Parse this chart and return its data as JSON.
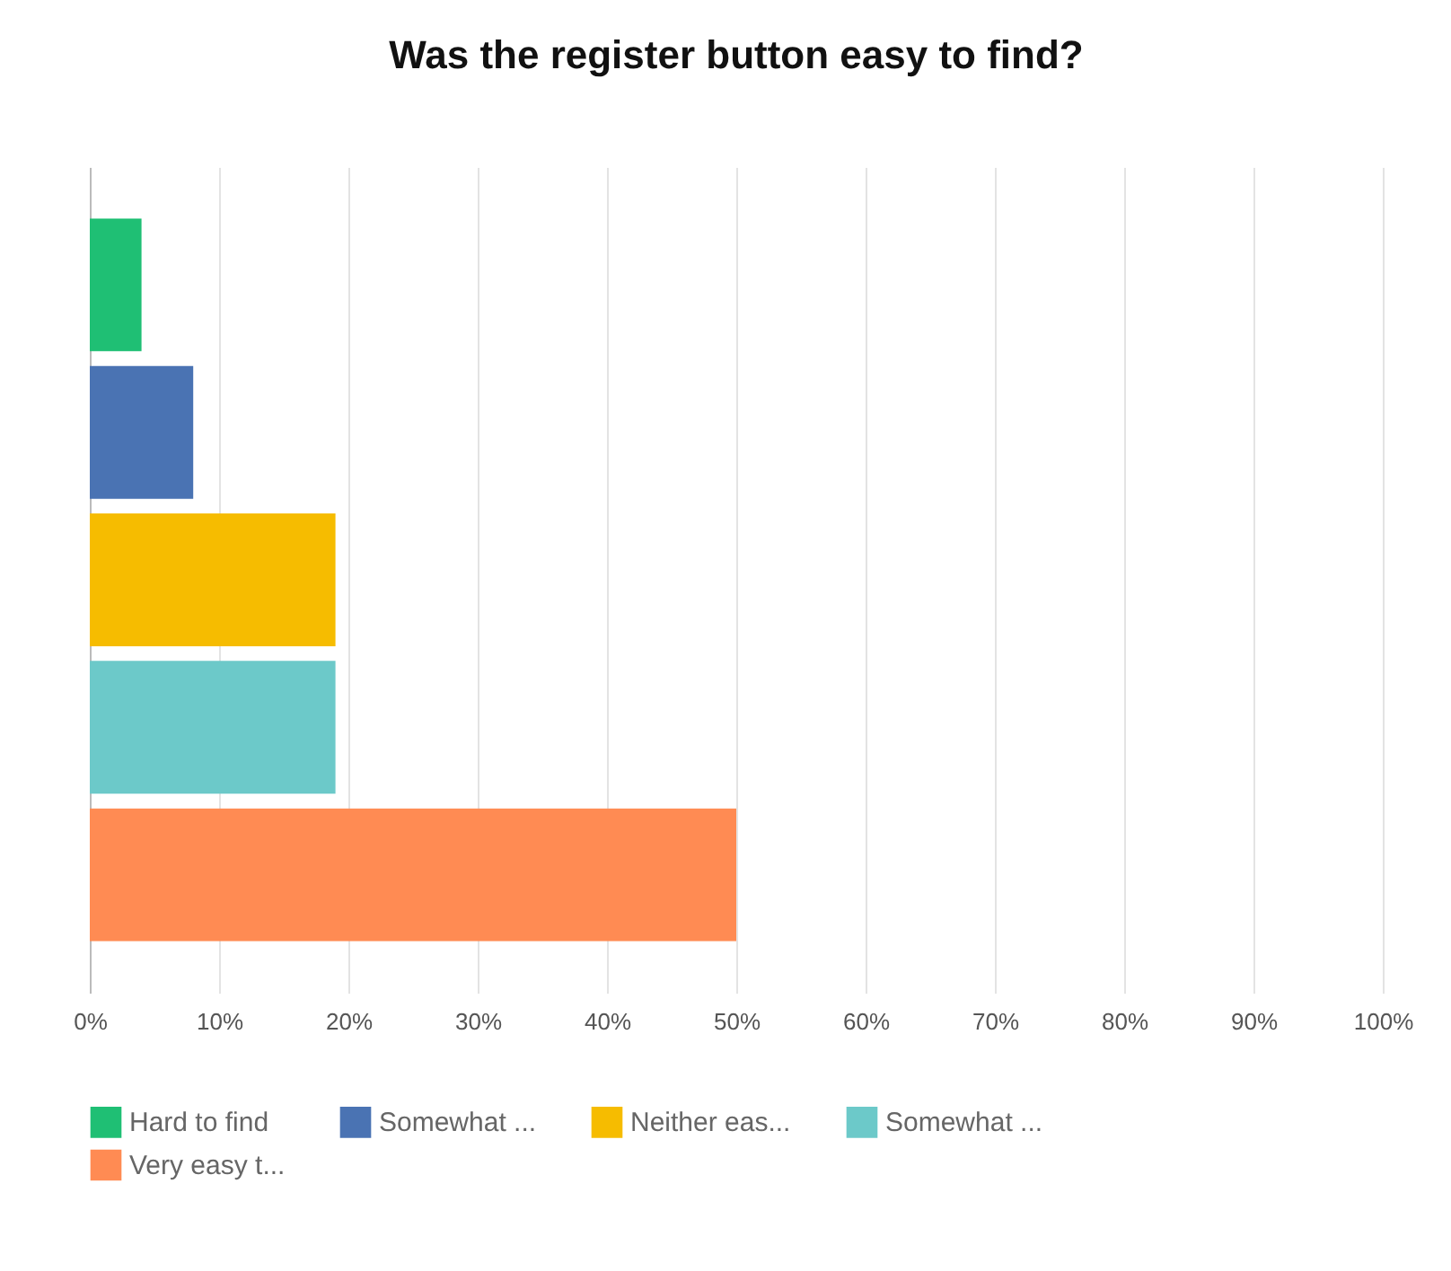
{
  "chart_data": {
    "type": "bar",
    "orientation": "horizontal",
    "title": "Was the register button easy to find?",
    "categories": [
      null,
      null,
      null,
      null,
      null
    ],
    "series": [
      {
        "name": "Hard to find",
        "color": "#1fbf74",
        "values": [
          4,
          null,
          null,
          null,
          null
        ]
      },
      {
        "name": "Somewhat ...",
        "color": "#4a73b3",
        "values": [
          null,
          8,
          null,
          null,
          null
        ]
      },
      {
        "name": "Neither eas...",
        "color": "#f6bc00",
        "values": [
          null,
          null,
          19,
          null,
          null
        ]
      },
      {
        "name": "Somewhat ...",
        "color": "#6cc9c9",
        "values": [
          null,
          null,
          null,
          19,
          null
        ]
      },
      {
        "name": "Very easy t...",
        "color": "#ff8b53",
        "values": [
          null,
          null,
          null,
          null,
          50
        ]
      }
    ],
    "xlim": [
      0,
      100
    ],
    "xticks": [
      {
        "value": 0,
        "label": "0%"
      },
      {
        "value": 10,
        "label": "10%"
      },
      {
        "value": 20,
        "label": "20%"
      },
      {
        "value": 30,
        "label": "30%"
      },
      {
        "value": 40,
        "label": "40%"
      },
      {
        "value": 50,
        "label": "50%"
      },
      {
        "value": 60,
        "label": "60%"
      },
      {
        "value": 70,
        "label": "70%"
      },
      {
        "value": 80,
        "label": "80%"
      },
      {
        "value": 90,
        "label": "90%"
      },
      {
        "value": 100,
        "label": "100%"
      }
    ],
    "grid": "x",
    "legend": "bottom"
  }
}
